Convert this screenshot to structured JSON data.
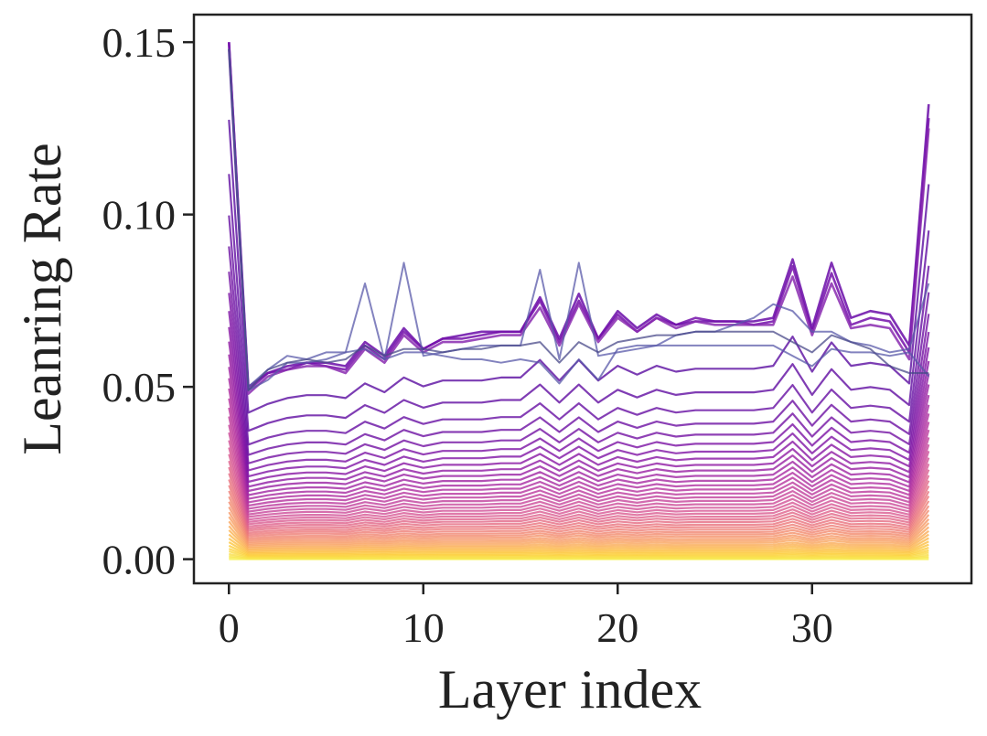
{
  "chart_data": {
    "type": "line",
    "title": "",
    "xlabel": "Layer index",
    "ylabel": "Leanring Rate",
    "xlim": [
      -1.8,
      38.2
    ],
    "ylim": [
      -0.007,
      0.158
    ],
    "xticks": [
      0,
      10,
      20,
      30
    ],
    "xtick_labels": [
      "0",
      "10",
      "20",
      "30"
    ],
    "yticks": [
      0.0,
      0.05,
      0.1,
      0.15
    ],
    "ytick_labels": [
      "0.00",
      "0.05",
      "0.10",
      "0.15"
    ],
    "grid": false,
    "legend": "none",
    "colormap": "plasma (reversed: early steps yellow, late steps purple)",
    "x": [
      0,
      1,
      2,
      3,
      4,
      5,
      6,
      7,
      8,
      9,
      10,
      11,
      12,
      13,
      14,
      15,
      16,
      17,
      18,
      19,
      20,
      21,
      22,
      23,
      24,
      25,
      26,
      27,
      28,
      29,
      30,
      31,
      32,
      33,
      34,
      35,
      36
    ],
    "num_series": 45,
    "series_color_start": "#f6f25a",
    "series_color_end": "#5a0ca0",
    "series_profile": [
      0.15,
      0.05,
      0.053,
      0.055,
      0.056,
      0.056,
      0.055,
      0.06,
      0.057,
      0.062,
      0.059,
      0.061,
      0.061,
      0.061,
      0.062,
      0.062,
      0.068,
      0.061,
      0.068,
      0.061,
      0.066,
      0.063,
      0.066,
      0.064,
      0.065,
      0.065,
      0.065,
      0.065,
      0.066,
      0.076,
      0.064,
      0.074,
      0.066,
      0.067,
      0.066,
      0.06,
      0.128
    ],
    "series_scales": [
      0.0,
      0.003,
      0.006,
      0.01,
      0.015,
      0.02,
      0.026,
      0.033,
      0.04,
      0.048,
      0.056,
      0.064,
      0.073,
      0.082,
      0.091,
      0.101,
      0.111,
      0.121,
      0.132,
      0.143,
      0.154,
      0.166,
      0.178,
      0.19,
      0.203,
      0.216,
      0.23,
      0.245,
      0.26,
      0.276,
      0.293,
      0.311,
      0.33,
      0.35,
      0.372,
      0.396,
      0.421,
      0.449,
      0.48,
      0.515,
      0.556,
      0.605,
      0.665,
      0.745,
      0.85
    ],
    "converged_series": [
      {
        "values": [
          0.15,
          0.05,
          0.054,
          0.056,
          0.057,
          0.057,
          0.056,
          0.063,
          0.059,
          0.067,
          0.061,
          0.064,
          0.065,
          0.066,
          0.066,
          0.066,
          0.076,
          0.064,
          0.077,
          0.064,
          0.072,
          0.067,
          0.071,
          0.068,
          0.069,
          0.069,
          0.069,
          0.069,
          0.07,
          0.087,
          0.067,
          0.086,
          0.07,
          0.072,
          0.071,
          0.062,
          0.132
        ]
      },
      {
        "values": [
          0.15,
          0.049,
          0.054,
          0.055,
          0.057,
          0.056,
          0.055,
          0.062,
          0.058,
          0.066,
          0.061,
          0.064,
          0.064,
          0.065,
          0.066,
          0.066,
          0.075,
          0.063,
          0.075,
          0.064,
          0.071,
          0.066,
          0.07,
          0.068,
          0.07,
          0.069,
          0.069,
          0.068,
          0.069,
          0.085,
          0.066,
          0.083,
          0.068,
          0.07,
          0.069,
          0.06,
          0.128
        ]
      },
      {
        "values": [
          0.148,
          0.048,
          0.053,
          0.055,
          0.056,
          0.056,
          0.054,
          0.061,
          0.057,
          0.065,
          0.06,
          0.063,
          0.063,
          0.064,
          0.065,
          0.065,
          0.073,
          0.062,
          0.074,
          0.063,
          0.07,
          0.066,
          0.07,
          0.067,
          0.069,
          0.068,
          0.068,
          0.068,
          0.068,
          0.082,
          0.065,
          0.08,
          0.067,
          0.068,
          0.067,
          0.058,
          0.125
        ]
      },
      {
        "values": [
          0.148,
          0.049,
          0.052,
          0.057,
          0.057,
          0.058,
          0.06,
          0.08,
          0.058,
          0.086,
          0.059,
          0.06,
          0.061,
          0.062,
          0.062,
          0.062,
          0.084,
          0.058,
          0.086,
          0.059,
          0.06,
          0.061,
          0.062,
          0.065,
          0.066,
          0.066,
          0.068,
          0.07,
          0.074,
          0.072,
          0.066,
          0.066,
          0.063,
          0.062,
          0.06,
          0.061,
          0.08
        ]
      },
      {
        "values": [
          0.148,
          0.05,
          0.055,
          0.059,
          0.058,
          0.06,
          0.06,
          0.061,
          0.058,
          0.06,
          0.06,
          0.059,
          0.058,
          0.058,
          0.057,
          0.058,
          0.057,
          0.051,
          0.058,
          0.052,
          0.061,
          0.062,
          0.062,
          0.062,
          0.062,
          0.062,
          0.062,
          0.062,
          0.062,
          0.059,
          0.056,
          0.061,
          0.06,
          0.06,
          0.059,
          0.06,
          0.053
        ]
      },
      {
        "values": [
          0.148,
          0.049,
          0.055,
          0.057,
          0.058,
          0.057,
          0.058,
          0.062,
          0.059,
          0.061,
          0.061,
          0.06,
          0.061,
          0.061,
          0.062,
          0.062,
          0.063,
          0.057,
          0.063,
          0.06,
          0.063,
          0.064,
          0.065,
          0.065,
          0.066,
          0.066,
          0.066,
          0.066,
          0.066,
          0.063,
          0.06,
          0.065,
          0.063,
          0.061,
          0.056,
          0.054,
          0.054
        ]
      }
    ]
  }
}
